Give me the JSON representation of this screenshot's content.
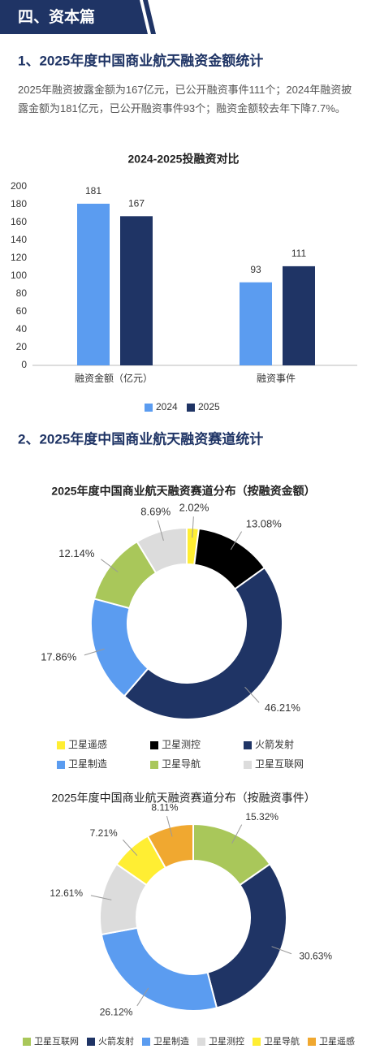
{
  "header": {
    "title": "四、资本篇"
  },
  "sections": [
    {
      "title": "1、2025年度中国商业航天融资金额统计",
      "paragraph": "2025年融资披露金额为167亿元，已公开融资事件111个；2024年融资披露金额为181亿元，已公开融资事件93个；融资金额较去年下降7.7%。"
    },
    {
      "title": "2、2025年度中国商业航天融资赛道统计"
    }
  ],
  "chart_data": [
    {
      "type": "bar",
      "title": "2024-2025投融资对比",
      "categories": [
        "融资金额（亿元）",
        "融资事件"
      ],
      "series": [
        {
          "name": "2024",
          "color": "#5b9cf0",
          "values": [
            181,
            93
          ]
        },
        {
          "name": "2025",
          "color": "#1f3465",
          "values": [
            167,
            111
          ]
        }
      ],
      "ylim": [
        0,
        200
      ],
      "yticks": [
        0,
        20,
        40,
        60,
        80,
        100,
        120,
        140,
        160,
        180,
        200
      ],
      "legend": "bottom"
    },
    {
      "type": "donut",
      "title": "2025年度中国商业航天融资赛道分布（按融资金额）",
      "categories": [
        "卫星遥感",
        "卫星测控",
        "火箭发射",
        "卫星制造",
        "卫星导航",
        "卫星互联网"
      ],
      "values": [
        2.02,
        13.08,
        46.21,
        17.86,
        12.14,
        8.69
      ],
      "value_labels": [
        "2.02%",
        "13.08%",
        "46.21%",
        "17.86%",
        "12.14%",
        "8.69%"
      ],
      "colors": [
        "#ffee33",
        "#000000",
        "#1f3465",
        "#5b9cf0",
        "#a9c75a",
        "#dcdcdc"
      ],
      "legend": "bottom"
    },
    {
      "type": "donut",
      "title": "2025年度中国商业航天融资赛道分布（按融资事件）",
      "categories": [
        "卫星互联网",
        "火箭发射",
        "卫星制造",
        "卫星测控",
        "卫星导航",
        "卫星遥感"
      ],
      "values": [
        15.32,
        30.63,
        26.12,
        12.61,
        7.21,
        8.11
      ],
      "value_labels": [
        "15.32%",
        "30.63%",
        "26.12%",
        "12.61%",
        "7.21%",
        "8.11%"
      ],
      "colors": [
        "#a9c75a",
        "#1f3465",
        "#5b9cf0",
        "#dcdcdc",
        "#ffee33",
        "#f0a830"
      ],
      "legend": "bottom"
    }
  ]
}
